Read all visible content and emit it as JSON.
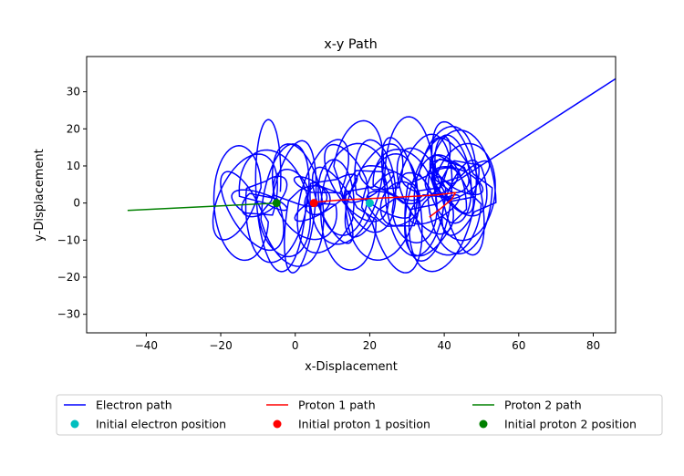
{
  "chart_data": {
    "type": "line",
    "title": "x-y Path",
    "xlabel": "x-Displacement",
    "ylabel": "y-Displacement",
    "xlim": [
      -56,
      86
    ],
    "ylim": [
      -35,
      39.5
    ],
    "xticks": [
      -40,
      -20,
      0,
      20,
      40,
      60,
      80
    ],
    "yticks": [
      -30,
      -20,
      -10,
      0,
      10,
      20,
      30
    ],
    "xtick_labels": [
      "−40",
      "−20",
      "0",
      "20",
      "40",
      "60",
      "80"
    ],
    "ytick_labels": [
      "−30",
      "−20",
      "−10",
      "0",
      "10",
      "20",
      "30"
    ],
    "grid": false,
    "legend_position": "bottom, below axes, 3 columns",
    "series": [
      {
        "name": "Electron path",
        "kind": "line",
        "color": "#0000ff",
        "orbit_center_x": [
          -9,
          -2,
          5,
          12,
          18,
          23,
          27,
          30,
          33,
          36,
          39,
          41,
          43,
          44,
          45,
          44,
          41,
          37,
          33,
          28,
          23,
          18,
          13,
          8,
          3,
          -2,
          -7,
          -12,
          -16,
          -14,
          -10,
          -6,
          -2,
          2,
          6,
          10,
          14,
          18,
          22,
          26,
          30,
          34,
          38,
          42,
          45,
          46,
          45,
          43,
          40
        ],
        "orbit_center_y": [
          3,
          1,
          -2,
          4,
          7,
          2,
          -4,
          3,
          6,
          0,
          -3,
          5,
          8,
          3,
          0,
          6,
          9,
          4,
          -1,
          5,
          6,
          1,
          -3,
          2,
          0,
          -2,
          2,
          -1,
          4,
          -4,
          0,
          3,
          -3,
          2,
          5,
          -1,
          4,
          7,
          2,
          -4,
          3,
          6,
          -2,
          1,
          9,
          4,
          2,
          6,
          10
        ]
      },
      {
        "name": "Initial electron position",
        "kind": "marker",
        "color": "#00bfbf",
        "x": 20,
        "y": 0
      },
      {
        "name": "Proton 1 path",
        "kind": "line",
        "color": "#ff0000",
        "x": [
          5,
          12,
          20,
          26,
          32,
          38,
          43,
          42,
          39,
          36
        ],
        "y": [
          0.2,
          0.8,
          1.2,
          1.5,
          1.8,
          2.2,
          2.8,
          1.0,
          -1.5,
          -3.8
        ]
      },
      {
        "name": "Initial proton 1 position",
        "kind": "marker",
        "color": "#ff0000",
        "x": 5,
        "y": 0
      },
      {
        "name": "Proton 2 path",
        "kind": "line",
        "color": "#008000",
        "x": [
          -5,
          -45
        ],
        "y": [
          0,
          -2
        ]
      },
      {
        "name": "Initial proton 2 position",
        "kind": "marker",
        "color": "#008000",
        "x": -5,
        "y": 0
      }
    ],
    "escape_segment": {
      "color": "#0000ff",
      "x": [
        42,
        86
      ],
      "y": [
        5,
        33.5
      ]
    }
  }
}
